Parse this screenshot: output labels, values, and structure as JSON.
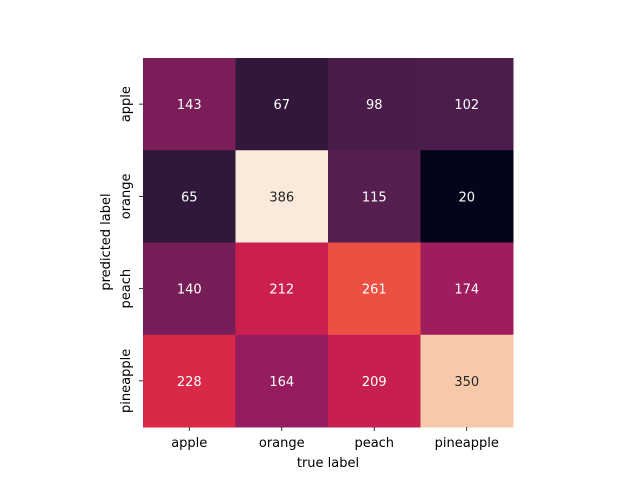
{
  "chart_data": {
    "type": "heatmap",
    "title": "",
    "xlabel": "true label",
    "ylabel": "predicted label",
    "x_categories": [
      "apple",
      "orange",
      "peach",
      "pineapple"
    ],
    "y_categories": [
      "apple",
      "orange",
      "peach",
      "pineapple"
    ],
    "values": [
      [
        143,
        67,
        98,
        102
      ],
      [
        65,
        386,
        115,
        20
      ],
      [
        140,
        212,
        261,
        174
      ],
      [
        228,
        164,
        209,
        350
      ]
    ],
    "value_range": [
      20,
      386
    ],
    "colormap": "rocket",
    "colorbar": false,
    "annotations": true,
    "grid": false
  }
}
